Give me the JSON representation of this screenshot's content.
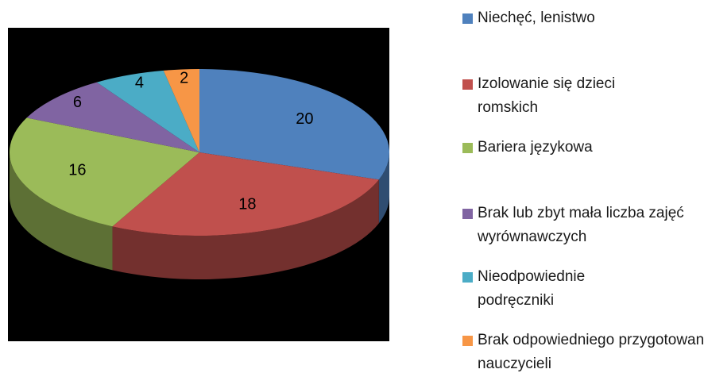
{
  "chart_data": {
    "type": "pie",
    "categories": [
      "Niechęć, lenistwo",
      "Izolowanie się dzieci romskich",
      "Bariera językowa",
      "Brak lub zbyt mała liczba zajęć wyrównawczych",
      "Nieodpowiednie podręczniki",
      "Brak odpowiedniego przygotowania nauczycieli"
    ],
    "values": [
      20,
      18,
      16,
      6,
      4,
      2
    ],
    "colors": [
      "#4f81bd",
      "#c0504d",
      "#9bbb59",
      "#8064a2",
      "#4bacc6",
      "#f79646"
    ],
    "legend": "right"
  }
}
